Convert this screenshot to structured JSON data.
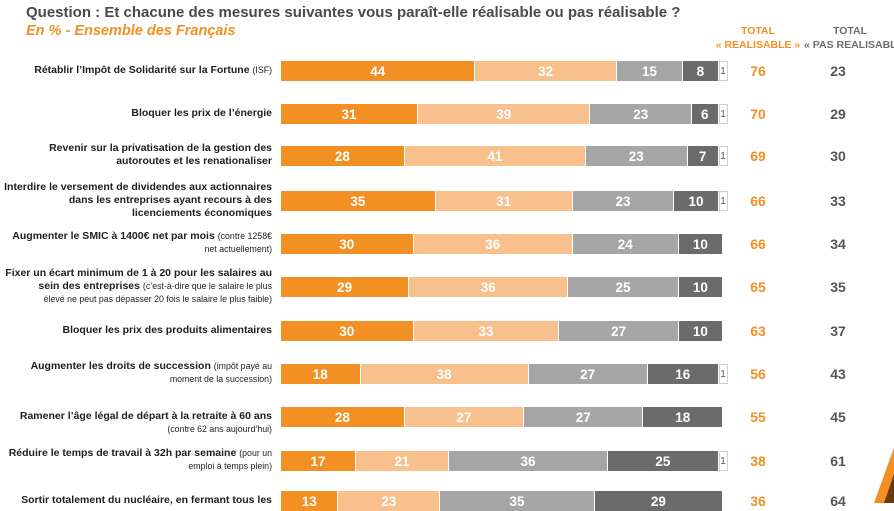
{
  "header": {
    "question": "Question : Et chacune des mesures suivantes vous paraît-elle réalisable ou pas réalisable ?",
    "subtitle": "En % - Ensemble des Français",
    "col_realisable": [
      "TOTAL",
      "« REALISABLE »"
    ],
    "col_pas_realisable": [
      "TOTAL",
      "« PAS REALISABLE »"
    ]
  },
  "colors": {
    "segment_1": "#f29023",
    "segment_2": "#f7c08c",
    "segment_3": "#a6a6a6",
    "segment_4": "#6b6b6b",
    "segment_5": "#ffffff",
    "total_realisable": "#f29023",
    "total_pas_realisable": "#555555"
  },
  "chart_data": {
    "type": "bar",
    "orientation": "horizontal",
    "stacked": true,
    "rows": [
      {
        "label": [
          "Rétablir l’Impôt de Solidarité sur la Fortune"
        ],
        "note": [
          "(ISF)"
        ],
        "values": [
          44,
          32,
          15,
          8,
          1
        ],
        "total_realisable": "76",
        "total_pas_realisable": "23"
      },
      {
        "label": [
          "Bloquer les prix de l’énergie"
        ],
        "note": [],
        "values": [
          31,
          39,
          23,
          6,
          1
        ],
        "total_realisable": "70",
        "total_pas_realisable": "29"
      },
      {
        "label": [
          "Revenir sur la privatisation de la gestion des",
          "autoroutes et les renationaliser"
        ],
        "note": [],
        "values": [
          28,
          41,
          23,
          7,
          1
        ],
        "total_realisable": "69",
        "total_pas_realisable": "30"
      },
      {
        "label": [
          "Interdire le versement de dividendes aux actionnaires",
          "dans les entreprises ayant recours à des",
          "licenciements économiques"
        ],
        "note": [],
        "values": [
          35,
          31,
          23,
          10,
          1
        ],
        "total_realisable": "66",
        "total_pas_realisable": "33"
      },
      {
        "label": [
          "Augmenter le SMIC à 1400€ net par mois"
        ],
        "note": [
          "(contre 1258€",
          "net actuellement)"
        ],
        "values": [
          30,
          36,
          24,
          10,
          0
        ],
        "total_realisable": "66",
        "total_pas_realisable": "34"
      },
      {
        "label": [
          "Fixer un écart minimum de 1 à 20 pour les salaires au",
          "sein des entreprises"
        ],
        "note": [
          "(c’est-à-dire que le salaire le plus",
          "élevé ne peut pas dépasser 20 fois le salaire le plus faible)"
        ],
        "values": [
          29,
          36,
          25,
          10,
          0
        ],
        "total_realisable": "65",
        "total_pas_realisable": "35"
      },
      {
        "label": [
          "Bloquer les prix des produits alimentaires"
        ],
        "note": [],
        "values": [
          30,
          33,
          27,
          10,
          0
        ],
        "total_realisable": "63",
        "total_pas_realisable": "37"
      },
      {
        "label": [
          "Augmenter les droits de succession"
        ],
        "note": [
          "(impôt payé au",
          "moment de la succession)"
        ],
        "values": [
          18,
          38,
          27,
          16,
          1
        ],
        "total_realisable": "56",
        "total_pas_realisable": "43"
      },
      {
        "label": [
          "Ramener l’âge légal de départ à la retraite à 60 ans"
        ],
        "note": [
          "(contre 62 ans aujourd’hui)"
        ],
        "values": [
          28,
          27,
          27,
          18,
          0
        ],
        "total_realisable": "55",
        "total_pas_realisable": "45"
      },
      {
        "label": [
          "Réduire le temps de travail à 32h par semaine"
        ],
        "note": [
          "(pour un",
          "emploi à temps plein)"
        ],
        "values": [
          17,
          21,
          36,
          25,
          1
        ],
        "total_realisable": "38",
        "total_pas_realisable": "61"
      },
      {
        "label": [
          "Sortir totalement du nucléaire, en fermant tous les"
        ],
        "note": [],
        "values": [
          13,
          23,
          35,
          29,
          0
        ],
        "total_realisable": "36",
        "total_pas_realisable": "64"
      }
    ]
  }
}
